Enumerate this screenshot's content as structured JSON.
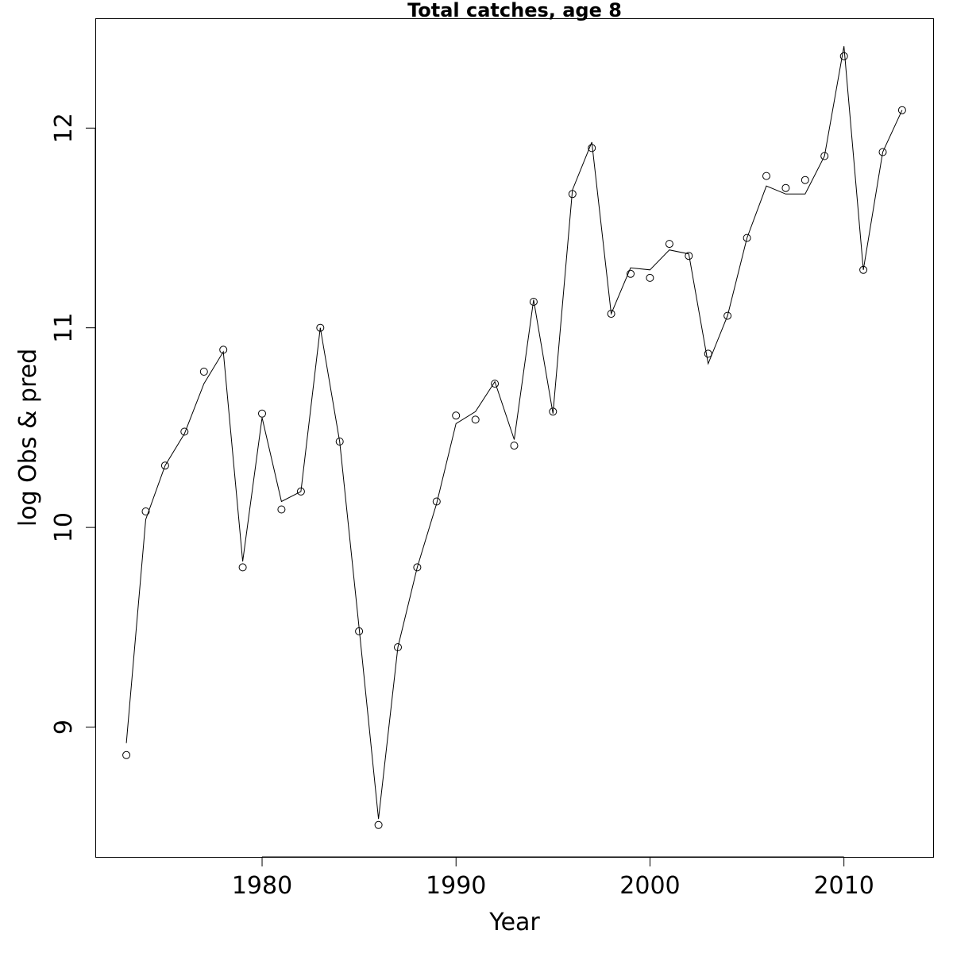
{
  "chart_data": {
    "type": "line",
    "title": "Total catches, age 8",
    "xlabel": "Year",
    "ylabel": "log Obs & pred",
    "xlim": [
      1971.4,
      2014.6
    ],
    "ylim": [
      8.35,
      12.55
    ],
    "x_ticks": [
      1980,
      1990,
      2000,
      2010
    ],
    "y_ticks": [
      9,
      10,
      11,
      12
    ],
    "grid": false,
    "legend": "none",
    "x": [
      1973,
      1974,
      1975,
      1976,
      1977,
      1978,
      1979,
      1980,
      1981,
      1982,
      1983,
      1984,
      1985,
      1986,
      1987,
      1988,
      1989,
      1990,
      1991,
      1992,
      1993,
      1994,
      1995,
      1996,
      1997,
      1998,
      1999,
      2000,
      2001,
      2002,
      2003,
      2004,
      2005,
      2006,
      2007,
      2008,
      2009,
      2010,
      2011,
      2012,
      2013
    ],
    "series": [
      {
        "name": "",
        "style": "points",
        "values": [
          8.86,
          10.08,
          10.31,
          10.48,
          10.78,
          10.89,
          9.8,
          10.57,
          10.09,
          10.18,
          11.0,
          10.43,
          9.48,
          8.51,
          9.4,
          9.8,
          10.13,
          10.56,
          10.54,
          10.72,
          10.41,
          11.13,
          10.58,
          11.67,
          11.9,
          11.07,
          11.27,
          11.25,
          11.42,
          11.36,
          10.87,
          11.06,
          11.45,
          11.76,
          11.7,
          11.74,
          11.86,
          12.36,
          11.29,
          11.88,
          12.09
        ]
      },
      {
        "name": "",
        "style": "line",
        "values": [
          8.92,
          10.04,
          10.31,
          10.47,
          10.72,
          10.88,
          9.83,
          10.55,
          10.13,
          10.18,
          11.0,
          10.43,
          9.5,
          8.54,
          9.4,
          9.8,
          10.12,
          10.52,
          10.58,
          10.73,
          10.44,
          11.14,
          10.57,
          11.69,
          11.93,
          11.07,
          11.3,
          11.29,
          11.39,
          11.37,
          10.82,
          11.06,
          11.45,
          11.71,
          11.67,
          11.67,
          11.86,
          12.41,
          11.29,
          11.88,
          12.09
        ]
      }
    ]
  }
}
